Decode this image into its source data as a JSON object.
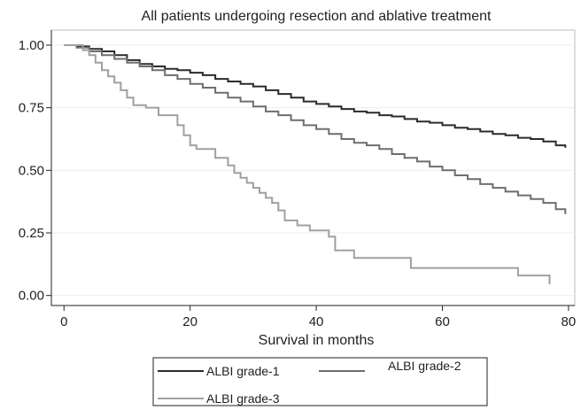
{
  "chart_data": {
    "type": "line",
    "title": "All patients undergoing resection and ablative treatment",
    "xlabel": "Survival in months",
    "ylabel": "",
    "xlim": [
      -2,
      81
    ],
    "ylim": [
      -0.04,
      1.06
    ],
    "x_ticks": [
      0,
      20,
      40,
      60,
      80
    ],
    "x_tick_labels": [
      "0",
      "20",
      "40",
      "60",
      "80"
    ],
    "y_ticks": [
      0,
      0.25,
      0.5,
      0.75,
      1
    ],
    "y_tick_labels": [
      "0.00",
      "0.25",
      "0.50",
      "0.75",
      "1.00"
    ],
    "grid": "horizontal",
    "step": true,
    "legend_position": "bottom",
    "series": [
      {
        "name": "ALBI grade-1",
        "color": "#2b2b2b",
        "points": [
          [
            0,
            1.0
          ],
          [
            2,
            0.995
          ],
          [
            4,
            0.985
          ],
          [
            6,
            0.975
          ],
          [
            8,
            0.96
          ],
          [
            10,
            0.94
          ],
          [
            12,
            0.925
          ],
          [
            14,
            0.915
          ],
          [
            16,
            0.905
          ],
          [
            18,
            0.9
          ],
          [
            20,
            0.89
          ],
          [
            22,
            0.88
          ],
          [
            24,
            0.865
          ],
          [
            26,
            0.855
          ],
          [
            28,
            0.845
          ],
          [
            30,
            0.835
          ],
          [
            32,
            0.82
          ],
          [
            34,
            0.805
          ],
          [
            36,
            0.79
          ],
          [
            38,
            0.775
          ],
          [
            40,
            0.765
          ],
          [
            42,
            0.755
          ],
          [
            44,
            0.745
          ],
          [
            46,
            0.735
          ],
          [
            48,
            0.73
          ],
          [
            50,
            0.72
          ],
          [
            52,
            0.715
          ],
          [
            54,
            0.705
          ],
          [
            56,
            0.695
          ],
          [
            58,
            0.69
          ],
          [
            60,
            0.68
          ],
          [
            62,
            0.67
          ],
          [
            64,
            0.665
          ],
          [
            66,
            0.655
          ],
          [
            68,
            0.645
          ],
          [
            70,
            0.64
          ],
          [
            72,
            0.63
          ],
          [
            74,
            0.625
          ],
          [
            76,
            0.615
          ],
          [
            78,
            0.6
          ],
          [
            79.5,
            0.59
          ]
        ]
      },
      {
        "name": "ALBI grade-2",
        "color": "#6e6e6e",
        "points": [
          [
            0,
            1.0
          ],
          [
            2,
            0.99
          ],
          [
            4,
            0.975
          ],
          [
            6,
            0.96
          ],
          [
            8,
            0.945
          ],
          [
            10,
            0.93
          ],
          [
            12,
            0.915
          ],
          [
            14,
            0.9
          ],
          [
            16,
            0.88
          ],
          [
            18,
            0.865
          ],
          [
            20,
            0.845
          ],
          [
            22,
            0.83
          ],
          [
            24,
            0.81
          ],
          [
            26,
            0.79
          ],
          [
            28,
            0.775
          ],
          [
            30,
            0.755
          ],
          [
            32,
            0.735
          ],
          [
            34,
            0.72
          ],
          [
            36,
            0.7
          ],
          [
            38,
            0.68
          ],
          [
            40,
            0.665
          ],
          [
            42,
            0.645
          ],
          [
            44,
            0.625
          ],
          [
            46,
            0.61
          ],
          [
            48,
            0.6
          ],
          [
            50,
            0.585
          ],
          [
            52,
            0.565
          ],
          [
            54,
            0.55
          ],
          [
            56,
            0.535
          ],
          [
            58,
            0.515
          ],
          [
            60,
            0.5
          ],
          [
            62,
            0.48
          ],
          [
            64,
            0.465
          ],
          [
            66,
            0.445
          ],
          [
            68,
            0.43
          ],
          [
            70,
            0.415
          ],
          [
            72,
            0.4
          ],
          [
            74,
            0.385
          ],
          [
            76,
            0.37
          ],
          [
            78,
            0.345
          ],
          [
            79.5,
            0.325
          ]
        ]
      },
      {
        "name": "ALBI grade-3",
        "color": "#a0a0a0",
        "points": [
          [
            0,
            1.0
          ],
          [
            3,
            0.98
          ],
          [
            4,
            0.96
          ],
          [
            5,
            0.93
          ],
          [
            6,
            0.9
          ],
          [
            7,
            0.875
          ],
          [
            8,
            0.85
          ],
          [
            9,
            0.82
          ],
          [
            10,
            0.79
          ],
          [
            11,
            0.76
          ],
          [
            13,
            0.75
          ],
          [
            15,
            0.72
          ],
          [
            17,
            0.72
          ],
          [
            18,
            0.68
          ],
          [
            19,
            0.64
          ],
          [
            20,
            0.6
          ],
          [
            21,
            0.585
          ],
          [
            24,
            0.55
          ],
          [
            26,
            0.52
          ],
          [
            27,
            0.49
          ],
          [
            28,
            0.47
          ],
          [
            29,
            0.45
          ],
          [
            30,
            0.43
          ],
          [
            31,
            0.41
          ],
          [
            32,
            0.39
          ],
          [
            33,
            0.37
          ],
          [
            34,
            0.34
          ],
          [
            35,
            0.3
          ],
          [
            37,
            0.28
          ],
          [
            39,
            0.26
          ],
          [
            40,
            0.26
          ],
          [
            42,
            0.235
          ],
          [
            43,
            0.18
          ],
          [
            46,
            0.15
          ],
          [
            55,
            0.11
          ],
          [
            72,
            0.08
          ],
          [
            77,
            0.045
          ]
        ]
      }
    ]
  }
}
